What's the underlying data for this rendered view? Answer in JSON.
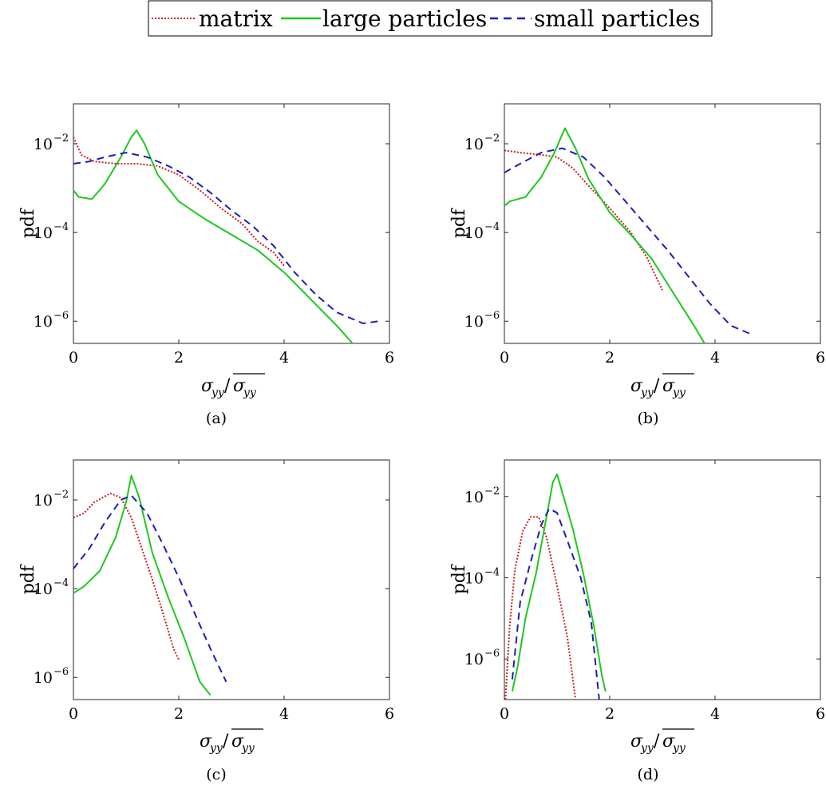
{
  "legend": {
    "placement": "top-center",
    "entries": [
      {
        "label": "matrix",
        "color": "#c81e1e",
        "style": "dotted"
      },
      {
        "label": "large particles",
        "color": "#1ec81e",
        "style": "solid"
      },
      {
        "label": "small particles",
        "color": "#1e1eb4",
        "style": "dashed"
      }
    ]
  },
  "chart_data": [
    {
      "type": "line",
      "caption": "(a)",
      "ylabel": "pdf",
      "xlabel": "σyy/σyy",
      "xlim": [
        0,
        6
      ],
      "ylim_log10": [
        -6.5,
        -1.1
      ],
      "yscale": "log",
      "xticks": [
        "0",
        "2",
        "4",
        "6"
      ],
      "yticks": [
        -6,
        -4,
        -2
      ],
      "series": [
        {
          "name": "matrix",
          "points": [
            [
              0,
              -1.85
            ],
            [
              0.15,
              -2.25
            ],
            [
              0.4,
              -2.4
            ],
            [
              0.8,
              -2.45
            ],
            [
              1.2,
              -2.45
            ],
            [
              1.6,
              -2.5
            ],
            [
              2.0,
              -2.7
            ],
            [
              2.4,
              -3.05
            ],
            [
              2.8,
              -3.45
            ],
            [
              3.2,
              -3.8
            ],
            [
              3.5,
              -4.2
            ],
            [
              3.8,
              -4.45
            ],
            [
              4.0,
              -4.75
            ]
          ]
        },
        {
          "name": "large particles",
          "points": [
            [
              0,
              -3.05
            ],
            [
              0.1,
              -3.2
            ],
            [
              0.35,
              -3.25
            ],
            [
              0.6,
              -2.9
            ],
            [
              0.9,
              -2.3
            ],
            [
              1.1,
              -1.85
            ],
            [
              1.2,
              -1.7
            ],
            [
              1.35,
              -2.0
            ],
            [
              1.6,
              -2.7
            ],
            [
              2.0,
              -3.3
            ],
            [
              2.5,
              -3.7
            ],
            [
              3.0,
              -4.05
            ],
            [
              3.5,
              -4.4
            ],
            [
              4.0,
              -4.9
            ],
            [
              4.5,
              -5.5
            ],
            [
              5.0,
              -6.1
            ],
            [
              5.3,
              -6.5
            ]
          ]
        },
        {
          "name": "small particles",
          "points": [
            [
              0,
              -2.45
            ],
            [
              0.3,
              -2.4
            ],
            [
              0.6,
              -2.3
            ],
            [
              1.0,
              -2.2
            ],
            [
              1.4,
              -2.3
            ],
            [
              1.8,
              -2.5
            ],
            [
              2.2,
              -2.75
            ],
            [
              2.6,
              -3.1
            ],
            [
              3.0,
              -3.5
            ],
            [
              3.4,
              -3.85
            ],
            [
              3.8,
              -4.3
            ],
            [
              4.2,
              -4.9
            ],
            [
              4.6,
              -5.4
            ],
            [
              5.0,
              -5.8
            ],
            [
              5.5,
              -6.05
            ],
            [
              5.8,
              -6.0
            ]
          ]
        }
      ]
    },
    {
      "type": "line",
      "caption": "(b)",
      "ylabel": "pdf",
      "xlabel": "σyy/σyy",
      "xlim": [
        0,
        6
      ],
      "ylim_log10": [
        -6.5,
        -1.1
      ],
      "yscale": "log",
      "xticks": [
        "0",
        "2",
        "4",
        "6"
      ],
      "yticks": [
        -6,
        -4,
        -2
      ],
      "series": [
        {
          "name": "matrix",
          "points": [
            [
              0,
              -2.15
            ],
            [
              0.3,
              -2.2
            ],
            [
              0.7,
              -2.25
            ],
            [
              1.0,
              -2.3
            ],
            [
              1.3,
              -2.55
            ],
            [
              1.6,
              -2.95
            ],
            [
              2.0,
              -3.45
            ],
            [
              2.4,
              -4.0
            ],
            [
              2.7,
              -4.55
            ],
            [
              3.0,
              -5.3
            ]
          ]
        },
        {
          "name": "large particles",
          "points": [
            [
              0,
              -3.4
            ],
            [
              0.1,
              -3.3
            ],
            [
              0.4,
              -3.2
            ],
            [
              0.7,
              -2.75
            ],
            [
              0.95,
              -2.2
            ],
            [
              1.15,
              -1.65
            ],
            [
              1.35,
              -2.1
            ],
            [
              1.6,
              -2.8
            ],
            [
              2.0,
              -3.55
            ],
            [
              2.4,
              -4.05
            ],
            [
              2.8,
              -4.6
            ],
            [
              3.2,
              -5.35
            ],
            [
              3.6,
              -6.1
            ],
            [
              3.8,
              -6.5
            ]
          ]
        },
        {
          "name": "small particles",
          "points": [
            [
              0,
              -2.65
            ],
            [
              0.3,
              -2.45
            ],
            [
              0.7,
              -2.2
            ],
            [
              1.1,
              -2.1
            ],
            [
              1.5,
              -2.3
            ],
            [
              1.9,
              -2.75
            ],
            [
              2.3,
              -3.3
            ],
            [
              2.7,
              -3.85
            ],
            [
              3.1,
              -4.4
            ],
            [
              3.5,
              -5.0
            ],
            [
              3.9,
              -5.6
            ],
            [
              4.3,
              -6.1
            ],
            [
              4.7,
              -6.3
            ]
          ]
        }
      ]
    },
    {
      "type": "line",
      "caption": "(c)",
      "ylabel": "pdf",
      "xlabel": "σyy/σyy",
      "xlim": [
        0,
        6
      ],
      "ylim_log10": [
        -6.5,
        -1.1
      ],
      "yscale": "log",
      "xticks": [
        "0",
        "2",
        "4",
        "6"
      ],
      "yticks": [
        -6,
        -4,
        -2
      ],
      "series": [
        {
          "name": "matrix",
          "points": [
            [
              0,
              -2.4
            ],
            [
              0.2,
              -2.3
            ],
            [
              0.4,
              -2.05
            ],
            [
              0.7,
              -1.85
            ],
            [
              0.9,
              -1.95
            ],
            [
              1.1,
              -2.4
            ],
            [
              1.3,
              -3.1
            ],
            [
              1.5,
              -3.8
            ],
            [
              1.7,
              -4.55
            ],
            [
              1.9,
              -5.35
            ],
            [
              2.0,
              -5.6
            ]
          ]
        },
        {
          "name": "large particles",
          "points": [
            [
              0,
              -4.1
            ],
            [
              0.2,
              -3.95
            ],
            [
              0.5,
              -3.6
            ],
            [
              0.8,
              -2.85
            ],
            [
              1.0,
              -2.05
            ],
            [
              1.1,
              -1.45
            ],
            [
              1.25,
              -1.95
            ],
            [
              1.5,
              -3.2
            ],
            [
              1.8,
              -4.2
            ],
            [
              2.1,
              -5.1
            ],
            [
              2.4,
              -6.1
            ],
            [
              2.6,
              -6.4
            ]
          ]
        },
        {
          "name": "small particles",
          "points": [
            [
              0,
              -3.55
            ],
            [
              0.3,
              -3.1
            ],
            [
              0.6,
              -2.5
            ],
            [
              0.9,
              -2.0
            ],
            [
              1.1,
              -1.9
            ],
            [
              1.4,
              -2.3
            ],
            [
              1.7,
              -3.0
            ],
            [
              2.0,
              -3.75
            ],
            [
              2.3,
              -4.55
            ],
            [
              2.6,
              -5.35
            ],
            [
              2.9,
              -6.1
            ]
          ]
        }
      ]
    },
    {
      "type": "line",
      "caption": "(d)",
      "ylabel": "pdf",
      "xlabel": "σyy/σyy",
      "xlim": [
        0,
        6
      ],
      "ylim_log10": [
        -7.0,
        -1.1
      ],
      "yscale": "log",
      "xticks": [
        "0",
        "2",
        "4",
        "6"
      ],
      "yticks": [
        -6,
        -4,
        -2
      ],
      "series": [
        {
          "name": "matrix",
          "points": [
            [
              0.02,
              -7.0
            ],
            [
              0.1,
              -5.2
            ],
            [
              0.2,
              -3.8
            ],
            [
              0.35,
              -2.85
            ],
            [
              0.5,
              -2.5
            ],
            [
              0.65,
              -2.5
            ],
            [
              0.8,
              -3.0
            ],
            [
              1.0,
              -4.2
            ],
            [
              1.2,
              -5.5
            ],
            [
              1.35,
              -7.0
            ]
          ]
        },
        {
          "name": "large particles",
          "points": [
            [
              0.15,
              -6.8
            ],
            [
              0.25,
              -6.2
            ],
            [
              0.4,
              -5.0
            ],
            [
              0.6,
              -3.9
            ],
            [
              0.8,
              -2.5
            ],
            [
              0.92,
              -1.65
            ],
            [
              1.0,
              -1.45
            ],
            [
              1.1,
              -1.9
            ],
            [
              1.3,
              -2.8
            ],
            [
              1.5,
              -3.9
            ],
            [
              1.7,
              -5.2
            ],
            [
              1.85,
              -6.4
            ],
            [
              1.92,
              -6.8
            ]
          ]
        },
        {
          "name": "small particles",
          "points": [
            [
              0.15,
              -6.5
            ],
            [
              0.3,
              -4.6
            ],
            [
              0.5,
              -3.6
            ],
            [
              0.7,
              -2.7
            ],
            [
              0.85,
              -2.3
            ],
            [
              1.0,
              -2.4
            ],
            [
              1.2,
              -3.1
            ],
            [
              1.45,
              -4.0
            ],
            [
              1.65,
              -5.1
            ],
            [
              1.8,
              -7.0
            ]
          ]
        }
      ]
    }
  ]
}
